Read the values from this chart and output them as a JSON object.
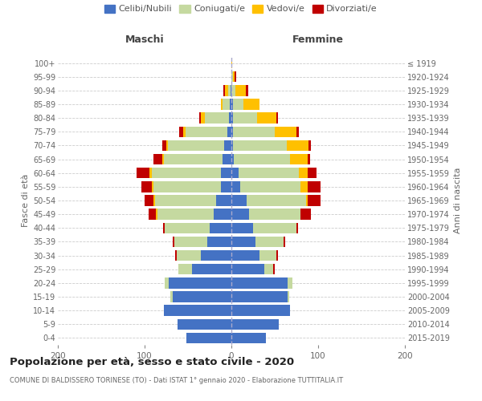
{
  "age_groups": [
    "0-4",
    "5-9",
    "10-14",
    "15-19",
    "20-24",
    "25-29",
    "30-34",
    "35-39",
    "40-44",
    "45-49",
    "50-54",
    "55-59",
    "60-64",
    "65-69",
    "70-74",
    "75-79",
    "80-84",
    "85-89",
    "90-94",
    "95-99",
    "100+"
  ],
  "birth_years": [
    "2015-2019",
    "2010-2014",
    "2005-2009",
    "2000-2004",
    "1995-1999",
    "1990-1994",
    "1985-1989",
    "1980-1984",
    "1975-1979",
    "1970-1974",
    "1965-1969",
    "1960-1964",
    "1955-1959",
    "1950-1954",
    "1945-1949",
    "1940-1944",
    "1935-1939",
    "1930-1934",
    "1925-1929",
    "1920-1924",
    "≤ 1919"
  ],
  "colors": {
    "celibi": "#4472c4",
    "coniugati": "#c5d9a0",
    "vedovi": "#ffc000",
    "divorziati": "#c00000"
  },
  "maschi": {
    "celibi": [
      52,
      62,
      78,
      68,
      72,
      45,
      35,
      28,
      25,
      20,
      18,
      12,
      12,
      10,
      8,
      5,
      3,
      2,
      1,
      0,
      0
    ],
    "coniugati": [
      0,
      0,
      0,
      2,
      5,
      16,
      28,
      38,
      52,
      65,
      70,
      78,
      80,
      68,
      65,
      48,
      28,
      8,
      3,
      0,
      0
    ],
    "vedovi": [
      0,
      0,
      0,
      0,
      0,
      0,
      0,
      0,
      0,
      2,
      2,
      2,
      2,
      2,
      2,
      3,
      4,
      2,
      3,
      0,
      0
    ],
    "divorziati": [
      0,
      0,
      0,
      0,
      0,
      0,
      2,
      2,
      2,
      8,
      10,
      12,
      15,
      10,
      5,
      4,
      2,
      0,
      2,
      0,
      0
    ]
  },
  "femmine": {
    "celibi": [
      40,
      55,
      68,
      65,
      65,
      38,
      32,
      28,
      25,
      20,
      18,
      10,
      8,
      3,
      2,
      2,
      2,
      2,
      0,
      0,
      0
    ],
    "coniugati": [
      0,
      0,
      0,
      2,
      5,
      10,
      20,
      32,
      50,
      60,
      68,
      70,
      70,
      65,
      62,
      48,
      28,
      12,
      5,
      2,
      0
    ],
    "vedovi": [
      0,
      0,
      0,
      0,
      0,
      0,
      0,
      0,
      0,
      0,
      2,
      8,
      10,
      20,
      25,
      25,
      22,
      18,
      12,
      2,
      1
    ],
    "divorziati": [
      0,
      0,
      0,
      0,
      0,
      2,
      2,
      2,
      2,
      12,
      15,
      15,
      10,
      3,
      3,
      3,
      2,
      0,
      2,
      2,
      0
    ]
  },
  "title": "Popolazione per età, sesso e stato civile - 2020",
  "subtitle": "COMUNE DI BALDISSERO TORINESE (TO) - Dati ISTAT 1° gennaio 2020 - Elaborazione TUTTITALIA.IT",
  "xlabel_left": "Maschi",
  "xlabel_right": "Femmine",
  "ylabel_left": "Fasce di età",
  "ylabel_right": "Anni di nascita",
  "xlim": 200,
  "bg_color": "#ffffff",
  "grid_color": "#cccccc",
  "legend_labels": [
    "Celibi/Nubili",
    "Coniugati/e",
    "Vedovi/e",
    "Divorziati/e"
  ]
}
